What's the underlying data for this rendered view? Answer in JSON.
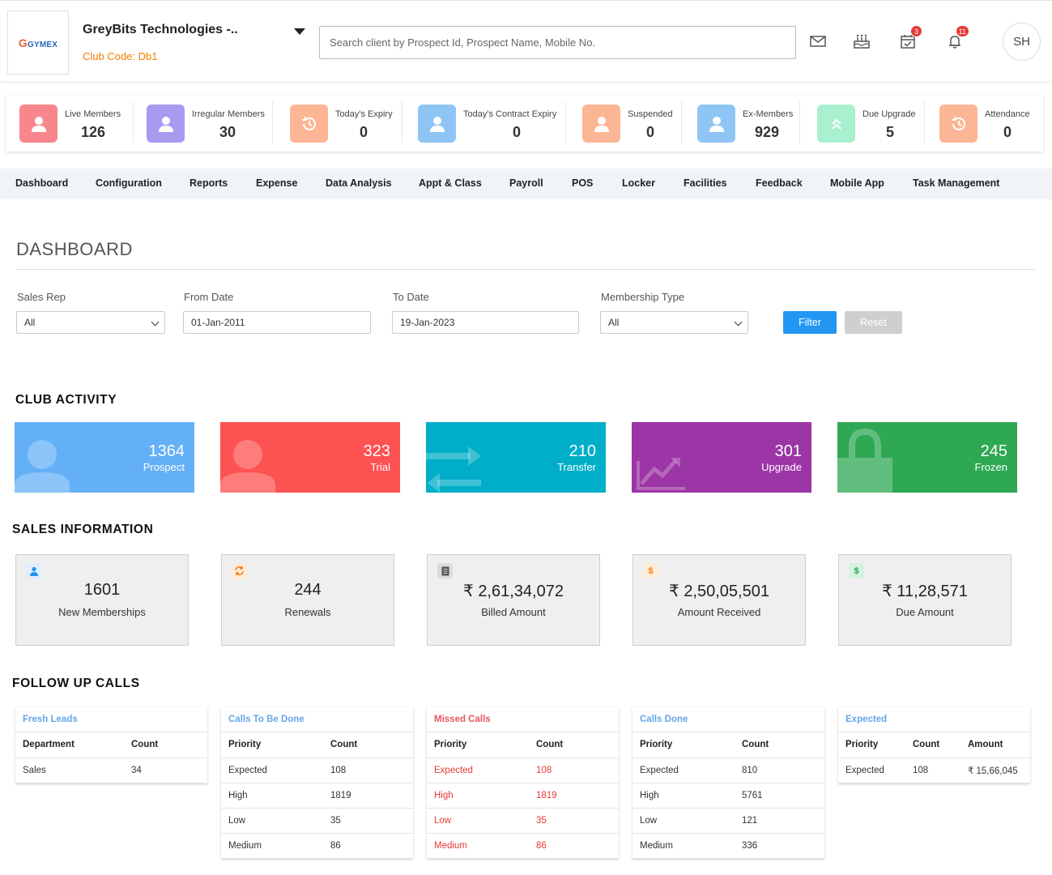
{
  "header": {
    "logo_text": "GYMEX",
    "club_name": "GreyBits Technologies -..",
    "club_code": "Club Code: Db1",
    "search_placeholder": "Search client by Prospect Id, Prospect Name, Mobile No.",
    "icons": [
      {
        "name": "mail-icon",
        "badge": ""
      },
      {
        "name": "birthday-cake-icon",
        "badge": ""
      },
      {
        "name": "calendar-check-icon",
        "badge": "3"
      },
      {
        "name": "bell-icon",
        "badge": "11"
      }
    ],
    "avatar_initials": "SH"
  },
  "stats": [
    {
      "label": "Live Members",
      "value": "126",
      "color": "#f7878c",
      "icon": "user-icon"
    },
    {
      "label": "Irregular Members",
      "value": "30",
      "color": "#a79bf0",
      "icon": "user-icon"
    },
    {
      "label": "Today's Expiry",
      "value": "0",
      "color": "#fcb595",
      "icon": "history-icon"
    },
    {
      "label": "Today's Contract Expiry",
      "value": "0",
      "color": "#8ec5f5",
      "icon": "user-icon"
    },
    {
      "label": "Suspended",
      "value": "0",
      "color": "#fcb595",
      "icon": "user-icon"
    },
    {
      "label": "Ex-Members",
      "value": "929",
      "color": "#8ec5f5",
      "icon": "user-icon"
    },
    {
      "label": "Due Upgrade",
      "value": "5",
      "color": "#a8f0cf",
      "icon": "double-chevron-up-icon"
    },
    {
      "label": "Attendance",
      "value": "0",
      "color": "#fcb595",
      "icon": "history-icon"
    }
  ],
  "nav": [
    "Dashboard",
    "Configuration",
    "Reports",
    "Expense",
    "Data Analysis",
    "Appt & Class",
    "Payroll",
    "POS",
    "Locker",
    "Facilities",
    "Feedback",
    "Mobile App",
    "Task Management"
  ],
  "dashboard": {
    "title": "DASHBOARD",
    "filters": {
      "sales_rep_label": "Sales Rep",
      "sales_rep_value": "All",
      "from_date_label": "From Date",
      "from_date_value": "01-Jan-2011",
      "to_date_label": "To Date",
      "to_date_value": "19-Jan-2023",
      "membership_type_label": "Membership Type",
      "membership_type_value": "All",
      "filter_button": "Filter",
      "reset_button": "Reset"
    }
  },
  "club_activity": {
    "title": "CLUB ACTIVITY",
    "cards": [
      {
        "value": "1364",
        "label": "Prospect",
        "color": "#64b0f7"
      },
      {
        "value": "323",
        "label": "Trial",
        "color": "#fd5252"
      },
      {
        "value": "210",
        "label": "Transfer",
        "color": "#00aec8"
      },
      {
        "value": "301",
        "label": "Upgrade",
        "color": "#9c35a6"
      },
      {
        "value": "245",
        "label": "Frozen",
        "color": "#2ea853"
      }
    ]
  },
  "sales_information": {
    "title": "SALES INFORMATION",
    "cards": [
      {
        "value": "1601",
        "label": "New Memberships",
        "icon": "user-icon",
        "icon_color": "#2196f3",
        "icon_bg": "#e3eefc"
      },
      {
        "value": "244",
        "label": "Renewals",
        "icon": "refresh-icon",
        "icon_color": "#f58220",
        "icon_bg": "#fdebd9"
      },
      {
        "value": "₹ 2,61,34,072",
        "label": "Billed Amount",
        "icon": "receipt-icon",
        "icon_color": "#555",
        "icon_bg": "#dcdcdc"
      },
      {
        "value": "₹ 2,50,05,501",
        "label": "Amount Received",
        "icon": "dollar-icon",
        "icon_color": "#f58220",
        "icon_bg": "#fdebd9"
      },
      {
        "value": "₹ 11,28,571",
        "label": "Due Amount",
        "icon": "dollar-icon",
        "icon_color": "#2ea853",
        "icon_bg": "#d6f2e0"
      }
    ]
  },
  "follow_up_calls": {
    "title": "FOLLOW UP CALLS",
    "fresh_leads": {
      "title": "Fresh Leads",
      "headers": [
        "Department",
        "Count"
      ],
      "rows": [
        [
          "Sales",
          "34"
        ]
      ]
    },
    "calls_to_be_done": {
      "title": "Calls To Be Done",
      "headers": [
        "Priority",
        "Count"
      ],
      "rows": [
        [
          "Expected",
          "108"
        ],
        [
          "High",
          "1819"
        ],
        [
          "Low",
          "35"
        ],
        [
          "Medium",
          "86"
        ]
      ]
    },
    "missed_calls": {
      "title": "Missed Calls",
      "headers": [
        "Priority",
        "Count"
      ],
      "rows": [
        [
          "Expected",
          "108"
        ],
        [
          "High",
          "1819"
        ],
        [
          "Low",
          "35"
        ],
        [
          "Medium",
          "86"
        ]
      ]
    },
    "calls_done": {
      "title": "Calls Done",
      "headers": [
        "Priority",
        "Count"
      ],
      "rows": [
        [
          "Expected",
          "810"
        ],
        [
          "High",
          "5761"
        ],
        [
          "Low",
          "121"
        ],
        [
          "Medium",
          "336"
        ]
      ]
    },
    "expected": {
      "title": "Expected",
      "headers": [
        "Priority",
        "Count",
        "Amount"
      ],
      "rows": [
        [
          "Expected",
          "108",
          "₹ 15,66,045"
        ]
      ]
    }
  }
}
